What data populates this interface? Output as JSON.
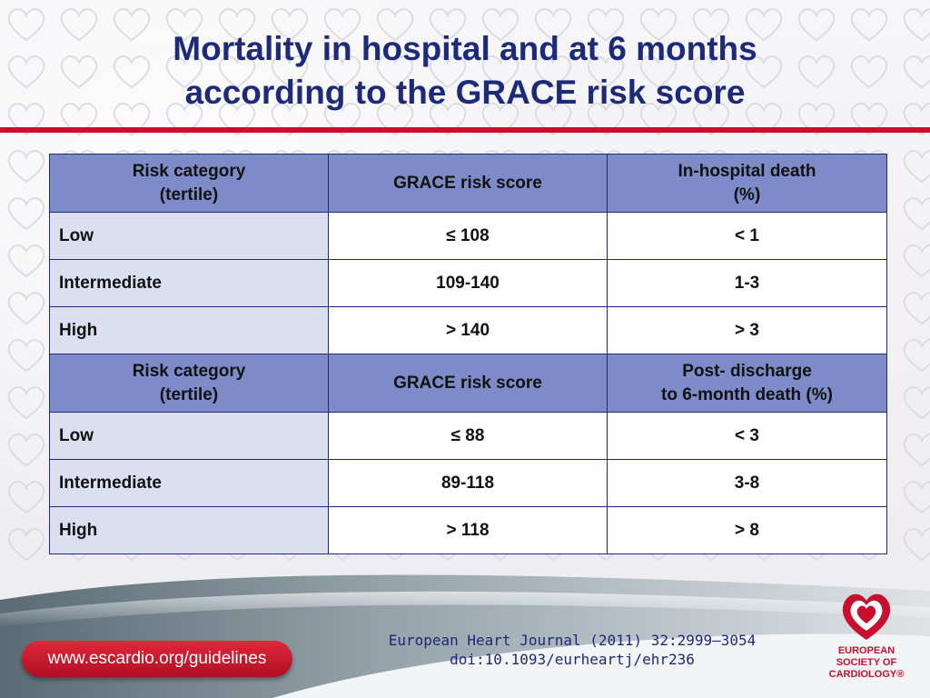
{
  "title": {
    "line1": "Mortality in hospital and at 6 months",
    "line2": "according to the GRACE risk score"
  },
  "table1": {
    "headers": [
      "Risk category\n(tertile)",
      "GRACE risk score",
      "In-hospital death\n(%)"
    ],
    "rows": [
      [
        "Low",
        "≤ 108",
        "< 1"
      ],
      [
        "Intermediate",
        "109-140",
        "1-3"
      ],
      [
        "High",
        "> 140",
        "> 3"
      ]
    ]
  },
  "table2": {
    "headers": [
      "Risk category\n(tertile)",
      "GRACE risk score",
      "Post- discharge\nto 6-month death (%)"
    ],
    "rows": [
      [
        "Low",
        "≤ 88",
        "< 3"
      ],
      [
        "Intermediate",
        "89-118",
        "3-8"
      ],
      [
        "High",
        "> 118",
        "> 8"
      ]
    ]
  },
  "footer": {
    "url": "www.escardio.org/guidelines",
    "citation_line1": "European Heart Journal (2011) 32:2999–3054",
    "citation_line2": "doi:10.1093/eurheartj/ehr236",
    "logo_line1": "EUROPEAN",
    "logo_line2": "SOCIETY OF",
    "logo_line3": "CARDIOLOGY®"
  },
  "colors": {
    "title": "#1d2a7a",
    "accent_red": "#c8102e",
    "header_fill": "#7d8cc8",
    "category_fill": "#dcdff0"
  },
  "icons": {
    "logo": "heart-icon"
  }
}
